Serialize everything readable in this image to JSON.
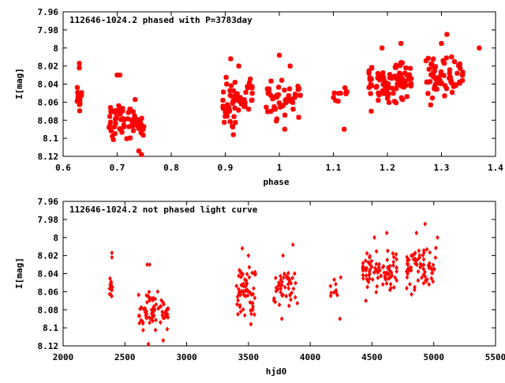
{
  "colors": {
    "series": "#ff0000",
    "axis": "#000000",
    "background": "#ffffff"
  },
  "chart_data": [
    {
      "type": "scatter",
      "title": "112646-1024.2 phased with P=3783day",
      "xlabel": "phase",
      "ylabel": "I[mag]",
      "xlim": [
        0.6,
        1.4
      ],
      "ylim": [
        8.12,
        7.96
      ],
      "y_inverted": true,
      "grid": false,
      "marker": "star",
      "xticks": [
        "0.6",
        "0.7",
        "0.8",
        "0.9",
        "1",
        "1.1",
        "1.2",
        "1.3",
        "1.4"
      ],
      "xtick_values": [
        0.6,
        0.7,
        0.8,
        0.9,
        1.0,
        1.1,
        1.2,
        1.3,
        1.4
      ],
      "yticks": [
        "7.96",
        "7.98",
        "8",
        "8.02",
        "8.04",
        "8.06",
        "8.08",
        "8.1",
        "8.12"
      ],
      "ytick_values": [
        7.96,
        7.98,
        8.0,
        8.02,
        8.04,
        8.06,
        8.08,
        8.1,
        8.12
      ],
      "clusters": [
        {
          "x": [
            0.625,
            0.635
          ],
          "y": [
            8.04,
            8.07
          ],
          "n": 14,
          "extra": [
            [
              0.63,
              8.017
            ],
            [
              0.63,
              8.022
            ]
          ]
        },
        {
          "x": [
            0.685,
            0.75
          ],
          "y": [
            8.055,
            8.105
          ],
          "n": 70,
          "extra": [
            [
              0.7,
              8.03
            ],
            [
              0.705,
              8.03
            ],
            [
              0.74,
              8.114
            ],
            [
              0.745,
              8.118
            ]
          ]
        },
        {
          "x": [
            0.895,
            0.95
          ],
          "y": [
            8.03,
            8.09
          ],
          "n": 60,
          "extra": [
            [
              0.91,
              8.012
            ],
            [
              0.925,
              8.02
            ],
            [
              0.915,
              8.096
            ]
          ]
        },
        {
          "x": [
            0.975,
            1.04
          ],
          "y": [
            8.03,
            8.085
          ],
          "n": 45,
          "extra": [
            [
              1.0,
              8.008
            ],
            [
              1.02,
              8.02
            ],
            [
              1.01,
              8.09
            ]
          ]
        },
        {
          "x": [
            1.1,
            1.125
          ],
          "y": [
            8.035,
            8.07
          ],
          "n": 10,
          "extra": [
            [
              1.12,
              8.09
            ]
          ]
        },
        {
          "x": [
            1.165,
            1.245
          ],
          "y": [
            8.01,
            8.065
          ],
          "n": 85,
          "extra": [
            [
              1.19,
              8.0
            ],
            [
              1.225,
              7.995
            ],
            [
              1.17,
              8.07
            ]
          ]
        },
        {
          "x": [
            1.265,
            1.34
          ],
          "y": [
            8.005,
            8.06
          ],
          "n": 70,
          "extra": [
            [
              1.31,
              7.985
            ],
            [
              1.3,
              7.995
            ],
            [
              1.37,
              8.0
            ],
            [
              1.28,
              8.063
            ]
          ]
        }
      ]
    },
    {
      "type": "scatter",
      "title": "112646-1024.2 not phased light curve",
      "xlabel": "hjd0",
      "ylabel": "I[mag]",
      "xlim": [
        2000,
        5500
      ],
      "ylim": [
        8.12,
        7.96
      ],
      "y_inverted": true,
      "grid": false,
      "marker": "diamond",
      "xticks": [
        "2000",
        "2500",
        "3000",
        "3500",
        "4000",
        "4500",
        "5000",
        "5500"
      ],
      "xtick_values": [
        2000,
        2500,
        3000,
        3500,
        4000,
        4500,
        5000,
        5500
      ],
      "yticks": [
        "7.96",
        "7.98",
        "8",
        "8.02",
        "8.04",
        "8.06",
        "8.08",
        "8.1",
        "8.12"
      ],
      "ytick_values": [
        7.96,
        7.98,
        8.0,
        8.02,
        8.04,
        8.06,
        8.08,
        8.1,
        8.12
      ],
      "clusters": [
        {
          "x": [
            2375,
            2400
          ],
          "y": [
            8.04,
            8.07
          ],
          "n": 14,
          "extra": [
            [
              2395,
              8.017
            ],
            [
              2395,
              8.022
            ]
          ]
        },
        {
          "x": [
            2600,
            2850
          ],
          "y": [
            8.055,
            8.105
          ],
          "n": 70,
          "extra": [
            [
              2680,
              8.03
            ],
            [
              2700,
              8.03
            ],
            [
              2810,
              8.114
            ],
            [
              2690,
              8.118
            ]
          ]
        },
        {
          "x": [
            3400,
            3560
          ],
          "y": [
            8.03,
            8.09
          ],
          "n": 60,
          "extra": [
            [
              3450,
              8.012
            ],
            [
              3500,
              8.02
            ],
            [
              3520,
              8.096
            ]
          ]
        },
        {
          "x": [
            3700,
            3900
          ],
          "y": [
            8.03,
            8.085
          ],
          "n": 45,
          "extra": [
            [
              3860,
              8.008
            ],
            [
              3780,
              8.02
            ],
            [
              3770,
              8.09
            ]
          ]
        },
        {
          "x": [
            4150,
            4260
          ],
          "y": [
            8.035,
            8.07
          ],
          "n": 10,
          "extra": [
            [
              4240,
              8.09
            ]
          ]
        },
        {
          "x": [
            4420,
            4700
          ],
          "y": [
            8.01,
            8.065
          ],
          "n": 85,
          "extra": [
            [
              4520,
              8.0
            ],
            [
              4620,
              7.995
            ],
            [
              4450,
              8.07
            ]
          ]
        },
        {
          "x": [
            4780,
            5020
          ],
          "y": [
            8.005,
            8.06
          ],
          "n": 70,
          "extra": [
            [
              4930,
              7.985
            ],
            [
              4860,
              7.995
            ],
            [
              5030,
              8.0
            ],
            [
              4820,
              8.063
            ]
          ]
        }
      ]
    }
  ]
}
